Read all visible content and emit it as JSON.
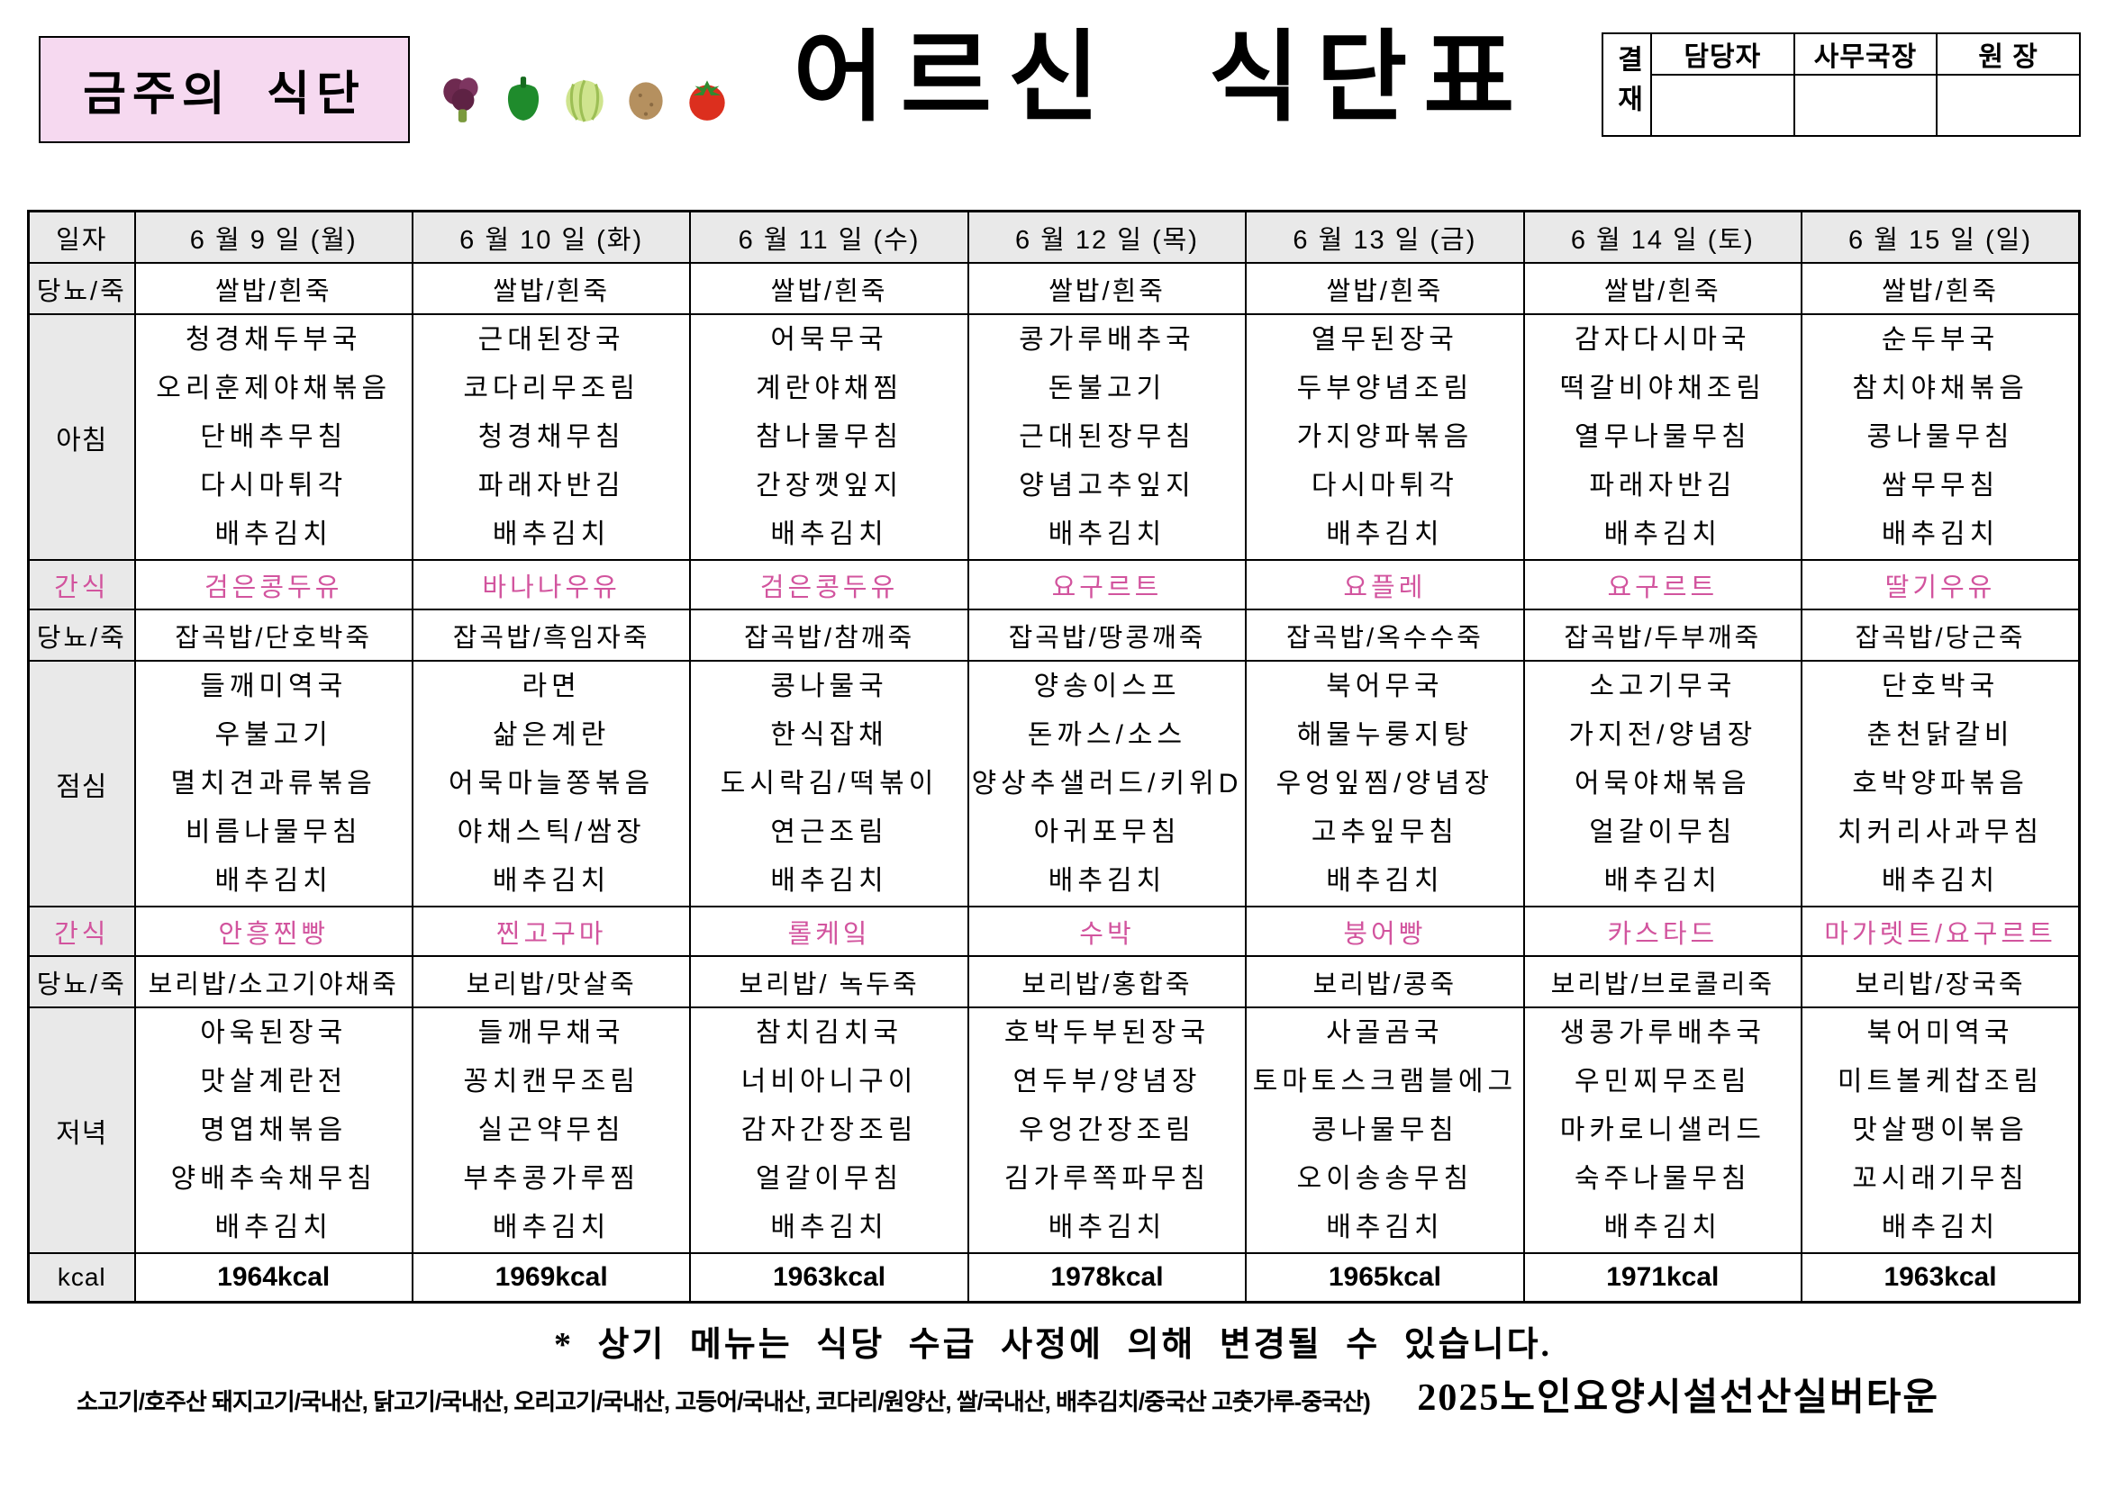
{
  "header": {
    "week_label": "금주의 식단",
    "title": "어르신 식단표",
    "icons": [
      "broccoli-icon",
      "green-pepper-icon",
      "cabbage-icon",
      "potato-icon",
      "tomato-icon"
    ],
    "approval": {
      "stamp_label": "결재",
      "columns": [
        "담당자",
        "사무국장",
        "원 장"
      ]
    }
  },
  "table": {
    "row_labels": {
      "date": "일자",
      "diabetes": "당뇨/죽",
      "breakfast": "아침",
      "snack": "간식",
      "lunch": "점심",
      "dinner": "저녁",
      "kcal": "kcal"
    },
    "days": [
      {
        "date": "6 월 9 일 (월)",
        "rice1": "쌀밥/흰죽",
        "breakfast": [
          "청경채두부국",
          "오리훈제야채볶음",
          "단배추무침",
          "다시마튀각",
          "배추김치"
        ],
        "snack1": "검은콩두유",
        "rice2": "잡곡밥/단호박죽",
        "lunch": [
          "들깨미역국",
          "우불고기",
          "멸치견과류볶음",
          "비름나물무침",
          "배추김치"
        ],
        "snack2": "안흥찐빵",
        "rice3": "보리밥/소고기야채죽",
        "dinner": [
          "아욱된장국",
          "맛살계란전",
          "명엽채볶음",
          "양배추숙채무침",
          "배추김치"
        ],
        "kcal": "1964kcal"
      },
      {
        "date": "6 월 10 일 (화)",
        "rice1": "쌀밥/흰죽",
        "breakfast": [
          "근대된장국",
          "코다리무조림",
          "청경채무침",
          "파래자반김",
          "배추김치"
        ],
        "snack1": "바나나우유",
        "rice2": "잡곡밥/흑임자죽",
        "lunch": [
          "라면",
          "삶은계란",
          "어묵마늘쫑볶음",
          "야채스틱/쌈장",
          "배추김치"
        ],
        "snack2": "찐고구마",
        "rice3": "보리밥/맛살죽",
        "dinner": [
          "들깨무채국",
          "꽁치캔무조림",
          "실곤약무침",
          "부추콩가루찜",
          "배추김치"
        ],
        "kcal": "1969kcal"
      },
      {
        "date": "6 월 11 일 (수)",
        "rice1": "쌀밥/흰죽",
        "breakfast": [
          "어묵무국",
          "계란야채찜",
          "참나물무침",
          "간장깻잎지",
          "배추김치"
        ],
        "snack1": "검은콩두유",
        "rice2": "잡곡밥/참깨죽",
        "lunch": [
          "콩나물국",
          "한식잡채",
          "도시락김/떡볶이",
          "연근조림",
          "배추김치"
        ],
        "snack2": "롤케잌",
        "rice3": "보리밥/ 녹두죽",
        "dinner": [
          "참치김치국",
          "너비아니구이",
          "감자간장조림",
          "얼갈이무침",
          "배추김치"
        ],
        "kcal": "1963kcal"
      },
      {
        "date": "6 월 12 일 (목)",
        "rice1": "쌀밥/흰죽",
        "breakfast": [
          "콩가루배추국",
          "돈불고기",
          "근대된장무침",
          "양념고추잎지",
          "배추김치"
        ],
        "snack1": "요구르트",
        "rice2": "잡곡밥/땅콩깨죽",
        "lunch": [
          "양송이스프",
          "돈까스/소스",
          "양상추샐러드/키위D",
          "아귀포무침",
          "배추김치"
        ],
        "snack2": "수박",
        "rice3": "보리밥/홍합죽",
        "dinner": [
          "호박두부된장국",
          "연두부/양념장",
          "우엉간장조림",
          "김가루쪽파무침",
          "배추김치"
        ],
        "kcal": "1978kcal"
      },
      {
        "date": "6 월 13 일 (금)",
        "rice1": "쌀밥/흰죽",
        "breakfast": [
          "열무된장국",
          "두부양념조림",
          "가지양파볶음",
          "다시마튀각",
          "배추김치"
        ],
        "snack1": "요플레",
        "rice2": "잡곡밥/옥수수죽",
        "lunch": [
          "북어무국",
          "해물누룽지탕",
          "우엉잎찜/양념장",
          "고추잎무침",
          "배추김치"
        ],
        "snack2": "붕어빵",
        "rice3": "보리밥/콩죽",
        "dinner": [
          "사골곰국",
          "토마토스크램블에그",
          "콩나물무침",
          "오이송송무침",
          "배추김치"
        ],
        "kcal": "1965kcal"
      },
      {
        "date": "6 월 14 일 (토)",
        "rice1": "쌀밥/흰죽",
        "breakfast": [
          "감자다시마국",
          "떡갈비야채조림",
          "열무나물무침",
          "파래자반김",
          "배추김치"
        ],
        "snack1": "요구르트",
        "rice2": "잡곡밥/두부깨죽",
        "lunch": [
          "소고기무국",
          "가지전/양념장",
          "어묵야채볶음",
          "얼갈이무침",
          "배추김치"
        ],
        "snack2": "카스타드",
        "rice3": "보리밥/브로콜리죽",
        "dinner": [
          "생콩가루배추국",
          "우민찌무조림",
          "마카로니샐러드",
          "숙주나물무침",
          "배추김치"
        ],
        "kcal": "1971kcal"
      },
      {
        "date": "6 월 15 일 (일)",
        "rice1": "쌀밥/흰죽",
        "breakfast": [
          "순두부국",
          "참치야채볶음",
          "콩나물무침",
          "쌈무무침",
          "배추김치"
        ],
        "snack1": "딸기우유",
        "rice2": "잡곡밥/당근죽",
        "lunch": [
          "단호박국",
          "춘천닭갈비",
          "호박양파볶음",
          "치커리사과무침",
          "배추김치"
        ],
        "snack2": "마가렛트/요구르트",
        "rice3": "보리밥/장국죽",
        "dinner": [
          "북어미역국",
          "미트볼케찹조림",
          "맛살팽이볶음",
          "꼬시래기무침",
          "배추김치"
        ],
        "kcal": "1963kcal"
      }
    ]
  },
  "footer": {
    "note": "* 상기 메뉴는 식당 수급 사정에 의해 변경될 수 있습니다.",
    "origin": "소고기/호주산 돼지고기/국내산, 닭고기/국내산, 오리고기/국내산, 고등어/국내산, 코다리/원양산, 쌀/국내산, 배추김치/중국산  고춧가루-중국산)",
    "facility": "2025노인요양시설선산실버타운"
  },
  "colors": {
    "snack_pink": "#D2549E",
    "header_pink_bg": "#F6D9F0",
    "row_gray": "#E9E9E9"
  }
}
